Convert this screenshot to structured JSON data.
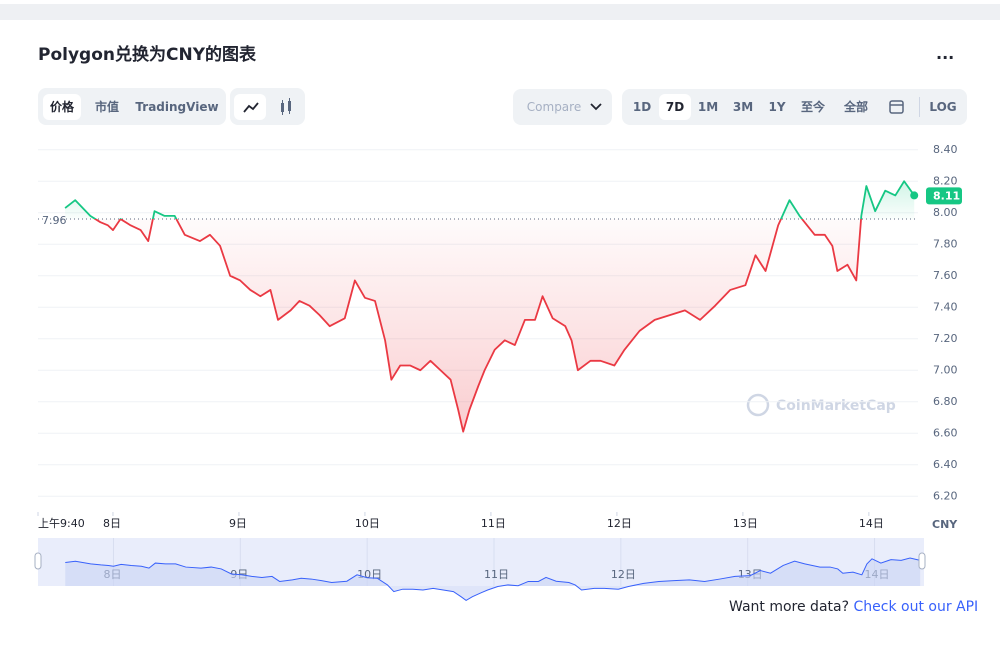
{
  "header": {
    "title": "Polygon兑换为CNY的图表",
    "menu": "..."
  },
  "tabs": [
    "价格",
    "市值",
    "TradingView"
  ],
  "compare": "Compare",
  "ranges": [
    "1D",
    "7D",
    "1M",
    "3M",
    "1Y",
    "至今",
    "全部"
  ],
  "log": "LOG",
  "watermark": "CoinMarketCap",
  "footer": {
    "text": "Want more data?",
    "link": "Check out our API"
  },
  "chart_data": {
    "type": "line",
    "ylabel": "CNY",
    "up_color": "#16c784",
    "down_color": "#ea3943",
    "grid": true,
    "reference": 7.96,
    "xlim": [
      7.405,
      14.39
    ],
    "xticks": [
      {
        "value": 7.405,
        "label": "上午9:40"
      },
      {
        "value": 8,
        "label": "8日"
      },
      {
        "value": 9,
        "label": "9日"
      },
      {
        "value": 10,
        "label": "10日"
      },
      {
        "value": 11,
        "label": "11日"
      },
      {
        "value": 12,
        "label": "12日"
      },
      {
        "value": 13,
        "label": "13日"
      },
      {
        "value": 14,
        "label": "14日"
      }
    ],
    "ylim": [
      6.1,
      8.5
    ],
    "yticks": [
      {
        "value": 6.2,
        "label": "6.20"
      },
      {
        "value": 6.4,
        "label": "6.40"
      },
      {
        "value": 6.6,
        "label": "6.60"
      },
      {
        "value": 6.8,
        "label": "6.80"
      },
      {
        "value": 7,
        "label": "7.00"
      },
      {
        "value": 7.2,
        "label": "7.20"
      },
      {
        "value": 7.4,
        "label": "7.40"
      },
      {
        "value": 7.6,
        "label": "7.60"
      },
      {
        "value": 7.8,
        "label": "7.80"
      },
      {
        "value": 8,
        "label": "8.00"
      },
      {
        "value": 8.2,
        "label": "8.20"
      },
      {
        "value": 8.4,
        "label": "8.40"
      }
    ],
    "x": [
      7.62,
      7.7,
      7.82,
      7.9,
      7.96,
      8.0,
      8.06,
      8.14,
      8.22,
      8.28,
      8.33,
      8.41,
      8.49,
      8.57,
      8.69,
      8.77,
      8.85,
      8.93,
      9.01,
      9.09,
      9.17,
      9.25,
      9.31,
      9.41,
      9.48,
      9.56,
      9.64,
      9.72,
      9.84,
      9.92,
      10.0,
      10.08,
      10.16,
      10.21,
      10.28,
      10.36,
      10.44,
      10.52,
      10.6,
      10.68,
      10.74,
      10.78,
      10.83,
      10.9,
      10.95,
      11.03,
      11.11,
      11.19,
      11.27,
      11.35,
      11.41,
      11.49,
      11.59,
      11.64,
      11.69,
      11.79,
      11.87,
      11.98,
      12.06,
      12.18,
      12.3,
      12.42,
      12.54,
      12.66,
      12.78,
      12.9,
      13.02,
      13.1,
      13.18,
      13.28,
      13.37,
      13.45,
      13.57,
      13.65,
      13.71,
      13.75,
      13.83,
      13.9,
      13.94,
      13.98,
      14.05,
      14.13,
      14.21,
      14.28,
      14.36
    ],
    "values": [
      8.03,
      8.08,
      7.98,
      7.94,
      7.92,
      7.89,
      7.96,
      7.92,
      7.89,
      7.82,
      8.01,
      7.98,
      7.98,
      7.86,
      7.82,
      7.86,
      7.79,
      7.6,
      7.57,
      7.51,
      7.47,
      7.51,
      7.32,
      7.38,
      7.44,
      7.41,
      7.35,
      7.28,
      7.33,
      7.57,
      7.46,
      7.44,
      7.19,
      6.94,
      7.03,
      7.03,
      7.0,
      7.06,
      7.0,
      6.94,
      6.75,
      6.61,
      6.75,
      6.9,
      7.0,
      7.13,
      7.19,
      7.16,
      7.32,
      7.32,
      7.47,
      7.33,
      7.28,
      7.19,
      7.0,
      7.06,
      7.06,
      7.03,
      7.13,
      7.25,
      7.32,
      7.35,
      7.38,
      7.32,
      7.41,
      7.51,
      7.54,
      7.73,
      7.63,
      7.92,
      8.08,
      7.98,
      7.86,
      7.86,
      7.79,
      7.63,
      7.67,
      7.57,
      7.98,
      8.17,
      8.01,
      8.14,
      8.11,
      8.2,
      8.11
    ]
  }
}
